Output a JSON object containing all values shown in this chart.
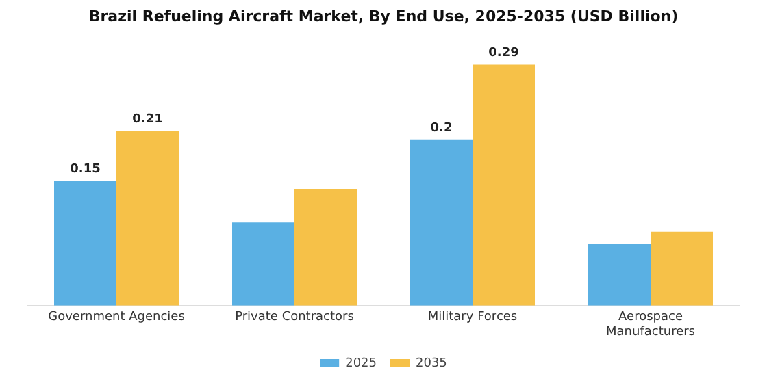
{
  "chart_data": {
    "type": "bar",
    "title": "Brazil Refueling Aircraft Market, By End Use, 2025-2035 (USD Billion)",
    "categories": [
      "Government Agencies",
      "Private Contractors",
      "Military Forces",
      "Aerospace Manufacturers"
    ],
    "series": [
      {
        "name": "2025",
        "color": "#5ab0e3",
        "values": [
          0.15,
          0.1,
          0.2,
          0.074
        ],
        "value_labels": [
          "0.15",
          null,
          "0.2",
          null
        ]
      },
      {
        "name": "2035",
        "color": "#f6c148",
        "values": [
          0.21,
          0.14,
          0.29,
          0.089
        ],
        "value_labels": [
          "0.21",
          null,
          "0.29",
          null
        ]
      }
    ],
    "legend": "bottom",
    "grid": false
  }
}
